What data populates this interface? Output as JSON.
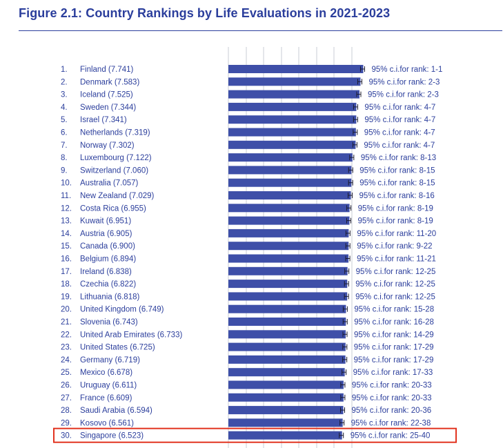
{
  "title": "Figure 2.1: Country Rankings by Life Evaluations in 2021-2023",
  "colors": {
    "bar": "#3e4fa8",
    "text": "#2b3e9c",
    "grid": "#c9ccd6",
    "highlight": "#e2331f"
  },
  "chart_data": {
    "type": "bar",
    "orientation": "horizontal",
    "title": "Figure 2.1: Country Rankings by Life Evaluations in 2021-2023",
    "highlighted_rank": 30,
    "rows": [
      {
        "rank": "1.",
        "country": "Finland",
        "score": 7.741,
        "score_text": "(7.741)",
        "ci": "95% c.i.for rank: 1-1"
      },
      {
        "rank": "2.",
        "country": "Denmark",
        "score": 7.583,
        "score_text": "(7.583)",
        "ci": "95% c.i.for rank: 2-3"
      },
      {
        "rank": "3.",
        "country": "Iceland",
        "score": 7.525,
        "score_text": "(7.525)",
        "ci": "95% c.i.for rank: 2-3"
      },
      {
        "rank": "4.",
        "country": "Sweden",
        "score": 7.344,
        "score_text": "(7.344)",
        "ci": "95% c.i.for rank: 4-7"
      },
      {
        "rank": "5.",
        "country": "Israel",
        "score": 7.341,
        "score_text": "(7.341)",
        "ci": "95% c.i.for rank: 4-7"
      },
      {
        "rank": "6.",
        "country": "Netherlands",
        "score": 7.319,
        "score_text": "(7.319)",
        "ci": "95% c.i.for rank: 4-7"
      },
      {
        "rank": "7.",
        "country": "Norway",
        "score": 7.302,
        "score_text": "(7.302)",
        "ci": "95% c.i.for rank: 4-7"
      },
      {
        "rank": "8.",
        "country": "Luxembourg",
        "score": 7.122,
        "score_text": "(7.122)",
        "ci": "95% c.i.for rank: 8-13"
      },
      {
        "rank": "9.",
        "country": "Switzerland",
        "score": 7.06,
        "score_text": "(7.060)",
        "ci": "95% c.i.for rank: 8-15"
      },
      {
        "rank": "10.",
        "country": "Australia",
        "score": 7.057,
        "score_text": "(7.057)",
        "ci": "95% c.i.for rank: 8-15"
      },
      {
        "rank": "11.",
        "country": "New Zealand",
        "score": 7.029,
        "score_text": "(7.029)",
        "ci": "95% c.i.for rank: 8-16"
      },
      {
        "rank": "12.",
        "country": "Costa Rica",
        "score": 6.955,
        "score_text": "(6.955)",
        "ci": "95% c.i.for rank: 8-19"
      },
      {
        "rank": "13.",
        "country": "Kuwait",
        "score": 6.951,
        "score_text": "(6.951)",
        "ci": "95% c.i.for rank: 8-19"
      },
      {
        "rank": "14.",
        "country": "Austria",
        "score": 6.905,
        "score_text": "(6.905)",
        "ci": "95% c.i.for rank: 11-20"
      },
      {
        "rank": "15.",
        "country": "Canada",
        "score": 6.9,
        "score_text": "(6.900)",
        "ci": "95% c.i.for rank: 9-22"
      },
      {
        "rank": "16.",
        "country": "Belgium",
        "score": 6.894,
        "score_text": "(6.894)",
        "ci": "95% c.i.for rank: 11-21"
      },
      {
        "rank": "17.",
        "country": "Ireland",
        "score": 6.838,
        "score_text": "(6.838)",
        "ci": "95% c.i.for rank: 12-25"
      },
      {
        "rank": "18.",
        "country": "Czechia",
        "score": 6.822,
        "score_text": "(6.822)",
        "ci": "95% c.i.for rank: 12-25"
      },
      {
        "rank": "19.",
        "country": "Lithuania",
        "score": 6.818,
        "score_text": "(6.818)",
        "ci": "95% c.i.for rank: 12-25"
      },
      {
        "rank": "20.",
        "country": "United Kingdom",
        "score": 6.749,
        "score_text": "(6.749)",
        "ci": "95% c.i.for rank: 15-28"
      },
      {
        "rank": "21.",
        "country": "Slovenia",
        "score": 6.743,
        "score_text": "(6.743)",
        "ci": "95% c.i.for rank: 16-28"
      },
      {
        "rank": "22.",
        "country": "United Arab Emirates",
        "score": 6.733,
        "score_text": "(6.733)",
        "ci": "95% c.i.for rank: 14-29"
      },
      {
        "rank": "23.",
        "country": "United States",
        "score": 6.725,
        "score_text": "(6.725)",
        "ci": "95% c.i.for rank: 17-29"
      },
      {
        "rank": "24.",
        "country": "Germany",
        "score": 6.719,
        "score_text": "(6.719)",
        "ci": "95% c.i.for rank: 17-29"
      },
      {
        "rank": "25.",
        "country": "Mexico",
        "score": 6.678,
        "score_text": "(6.678)",
        "ci": "95% c.i.for rank: 17-33"
      },
      {
        "rank": "26.",
        "country": "Uruguay",
        "score": 6.611,
        "score_text": "(6.611)",
        "ci": "95% c.i.for rank: 20-33"
      },
      {
        "rank": "27.",
        "country": "France",
        "score": 6.609,
        "score_text": "(6.609)",
        "ci": "95% c.i.for rank: 20-33"
      },
      {
        "rank": "28.",
        "country": "Saudi Arabia",
        "score": 6.594,
        "score_text": "(6.594)",
        "ci": "95% c.i.for rank: 20-36"
      },
      {
        "rank": "29.",
        "country": "Kosovo",
        "score": 6.561,
        "score_text": "(6.561)",
        "ci": "95% c.i.for rank: 22-38"
      },
      {
        "rank": "30.",
        "country": "Singapore",
        "score": 6.523,
        "score_text": "(6.523)",
        "ci": "95% c.i.for rank: 25-40"
      }
    ]
  }
}
